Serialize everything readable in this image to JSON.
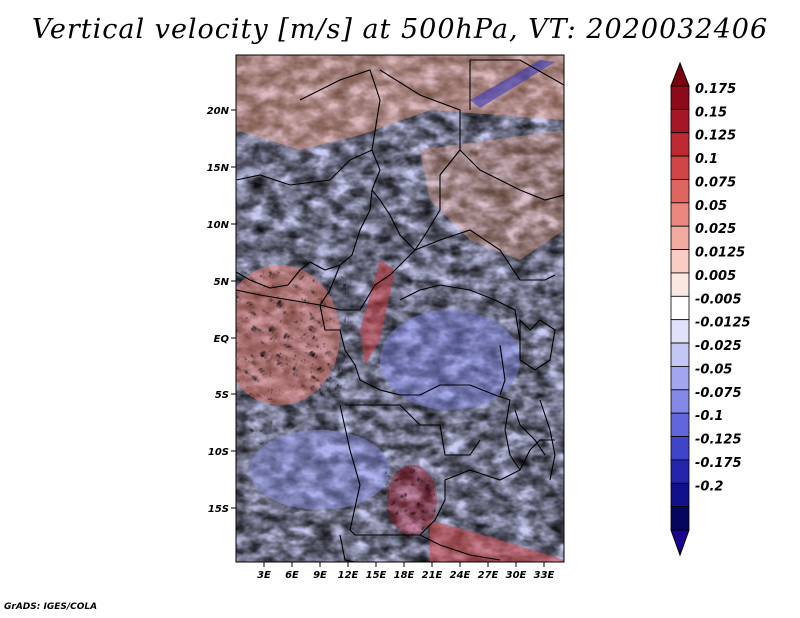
{
  "title": "Vertical velocity [m/s] at 500hPa, VT: 2020032406",
  "credit": "GrADS: IGES/COLA",
  "map": {
    "lat_labels": [
      "20N",
      "15N",
      "10N",
      "5N",
      "EQ",
      "5S",
      "10S",
      "15S"
    ],
    "lon_labels": [
      "3E",
      "6E",
      "9E",
      "12E",
      "15E",
      "18E",
      "21E",
      "24E",
      "27E",
      "30E",
      "33E"
    ],
    "colors": {
      "strong_up": "#b2182b",
      "moderate_up": "#f4a582",
      "weak_up": "#fddbc7",
      "neutral": "#ffffff",
      "weak_down": "#d1d5f5",
      "moderate_down": "#8f95ea",
      "strong_down": "#1a1aa0"
    }
  },
  "colorbar": {
    "labels": [
      "0.175",
      "0.15",
      "0.125",
      "0.1",
      "0.075",
      "0.05",
      "0.025",
      "0.0125",
      "0.005",
      "-0.005",
      "-0.0125",
      "-0.025",
      "-0.05",
      "-0.075",
      "-0.1",
      "-0.125",
      "-0.175",
      "-0.2"
    ],
    "colors": [
      "#8c0a1a",
      "#a51726",
      "#bd2a33",
      "#d04545",
      "#df6561",
      "#ea8880",
      "#f2aba1",
      "#f8cdc4",
      "#fbe7e2",
      "#ffffff",
      "#e1e2fa",
      "#c4c6f4",
      "#a3a6ee",
      "#8387e6",
      "#6266dd",
      "#4044c9",
      "#2424ad",
      "#10108c",
      "#06065e"
    ],
    "top_arrow_color": "#7a0010",
    "bottom_arrow_color": "#1a0090"
  }
}
